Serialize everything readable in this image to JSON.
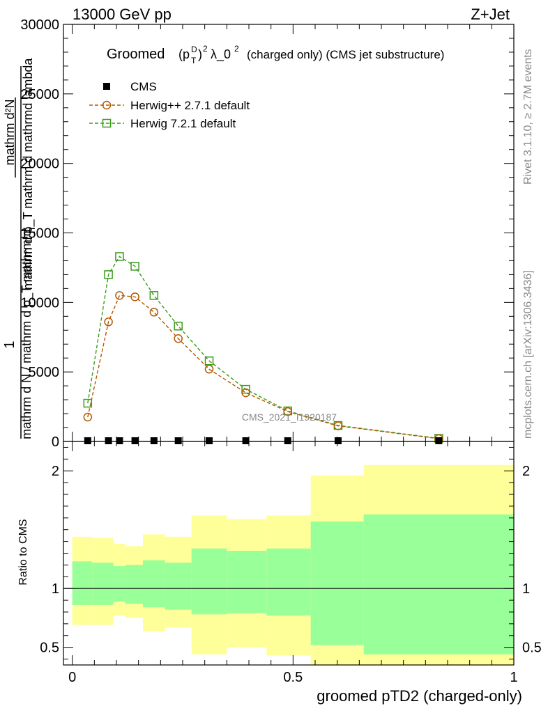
{
  "header": {
    "left": "13000 GeV pp",
    "right": "Z+Jet"
  },
  "title": {
    "prefix": "Groomed",
    "p": "p",
    "sup_D": "D",
    "sub_T": "T",
    "sup_2": "2",
    "lambda": "λ_0",
    "sup2b": "2",
    "suffix": "(charged only) (CMS jet substructure)"
  },
  "side_labels": {
    "rivet": "Rivet 3.1.10, ≥ 2.7M events",
    "mcplots": "mcplots.cern.ch [arXiv:1306.3436]",
    "watermark": "CMS_2021_I1920187"
  },
  "ylabel_main": {
    "one": "1",
    "numerator": "mathrm d²N",
    "denominator_top": "mathrm d p_T mathrm d mathrmd lambda",
    "denominator_bottom": "mathrm d N / mathrm d p_T mathrm d"
  },
  "ylabel_ratio": "Ratio to CMS",
  "xlabel": "groomed pTD2 (charged-only)",
  "colors": {
    "herwig_pp": "#b35900",
    "herwig7": "#3a9b1a",
    "band_inner": "#99ff99",
    "band_outer": "#ffff99"
  },
  "chart_data": [
    {
      "type": "line",
      "panel": "main",
      "xlim": [
        -0.02,
        1.0
      ],
      "ylim": [
        0,
        30000
      ],
      "yticks": [
        0,
        5000,
        10000,
        15000,
        20000,
        25000,
        30000
      ],
      "ytick_labels": [
        "0",
        "5000",
        "10000",
        "15000",
        "20000",
        "25000",
        "30000"
      ],
      "legend_position": "top-left",
      "series": [
        {
          "name": "CMS",
          "marker": "filled-square",
          "x": [
            0.035,
            0.082,
            0.107,
            0.142,
            0.185,
            0.24,
            0.31,
            0.393,
            0.488,
            0.602,
            0.83
          ],
          "y": [
            0,
            0,
            0,
            0,
            0,
            0,
            0,
            0,
            0,
            0,
            0
          ]
        },
        {
          "name": "Herwig++ 2.7.1 default",
          "marker": "open-circle",
          "x": [
            0.035,
            0.082,
            0.107,
            0.142,
            0.185,
            0.24,
            0.31,
            0.393,
            0.488,
            0.602,
            0.83
          ],
          "y": [
            1750,
            8600,
            10500,
            10400,
            9300,
            7400,
            5200,
            3500,
            2150,
            1120,
            200
          ]
        },
        {
          "name": "Herwig 7.2.1 default",
          "marker": "open-square",
          "x": [
            0.035,
            0.082,
            0.107,
            0.142,
            0.185,
            0.24,
            0.31,
            0.393,
            0.488,
            0.602,
            0.83
          ],
          "y": [
            2750,
            12000,
            13300,
            12600,
            10500,
            8300,
            5800,
            3750,
            2200,
            1150,
            220
          ]
        }
      ]
    },
    {
      "type": "area",
      "panel": "ratio",
      "ylabel": "Ratio to CMS",
      "xlabel": "groomed pTD2 (charged-only)",
      "xlim": [
        -0.02,
        1.0
      ],
      "ylim": [
        0.35,
        2.25
      ],
      "xticks": [
        0,
        0.5,
        1
      ],
      "xtick_labels": [
        "0",
        "0.5",
        "1"
      ],
      "yticks": [
        0.5,
        1,
        2
      ],
      "ytick_labels": [
        "0.5",
        "1",
        "2"
      ],
      "bins": [
        {
          "lo": 0.0,
          "hi": 0.045,
          "inner": [
            0.86,
            1.23
          ],
          "outer": [
            0.69,
            1.44
          ]
        },
        {
          "lo": 0.045,
          "hi": 0.093,
          "inner": [
            0.86,
            1.22
          ],
          "outer": [
            0.69,
            1.43
          ]
        },
        {
          "lo": 0.093,
          "hi": 0.12,
          "inner": [
            0.89,
            1.19
          ],
          "outer": [
            0.77,
            1.38
          ]
        },
        {
          "lo": 0.12,
          "hi": 0.16,
          "inner": [
            0.87,
            1.2
          ],
          "outer": [
            0.75,
            1.36
          ]
        },
        {
          "lo": 0.16,
          "hi": 0.21,
          "inner": [
            0.84,
            1.24
          ],
          "outer": [
            0.64,
            1.46
          ]
        },
        {
          "lo": 0.21,
          "hi": 0.27,
          "inner": [
            0.82,
            1.22
          ],
          "outer": [
            0.67,
            1.44
          ]
        },
        {
          "lo": 0.27,
          "hi": 0.35,
          "inner": [
            0.78,
            1.34
          ],
          "outer": [
            0.44,
            1.62
          ]
        },
        {
          "lo": 0.35,
          "hi": 0.44,
          "inner": [
            0.79,
            1.32
          ],
          "outer": [
            0.5,
            1.59
          ]
        },
        {
          "lo": 0.44,
          "hi": 0.54,
          "inner": [
            0.77,
            1.34
          ],
          "outer": [
            0.43,
            1.62
          ]
        },
        {
          "lo": 0.54,
          "hi": 0.66,
          "inner": [
            0.52,
            1.57
          ],
          "outer": [
            0.35,
            1.96
          ]
        },
        {
          "lo": 0.66,
          "hi": 1.0,
          "inner": [
            0.44,
            1.63
          ],
          "outer": [
            0.35,
            2.05
          ]
        }
      ],
      "reference_line": 1
    }
  ]
}
